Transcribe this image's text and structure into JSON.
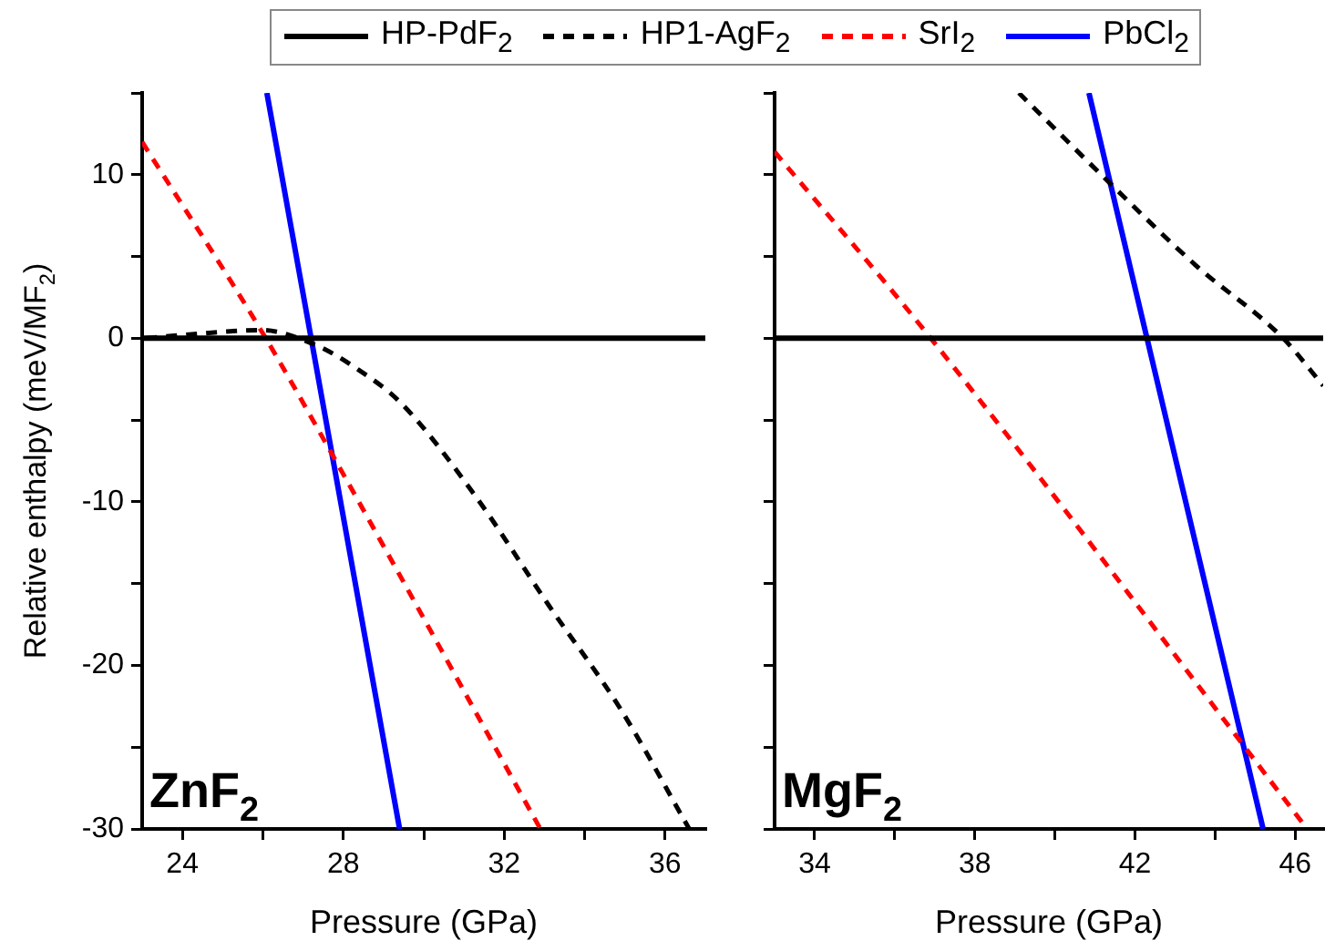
{
  "chart_data": [
    {
      "type": "line",
      "xlabel": "Pressure (GPa)",
      "ylabel": "Relative enthalpy (meV/MF$_{2}$)",
      "annotations": [
        "ZnF$_{2}$"
      ],
      "legend": "top",
      "grid": false,
      "xlim": [
        23,
        37
      ],
      "xticks": [
        24,
        {
          "value": 26,
          "label": null
        },
        28,
        {
          "value": 30,
          "label": null
        },
        32,
        {
          "value": 34,
          "label": null
        },
        36
      ],
      "ylim": [
        -30,
        15
      ],
      "yticks": [
        -30,
        {
          "value": -25,
          "label": null
        },
        -20,
        {
          "value": -15,
          "label": null
        },
        -10,
        {
          "value": -5,
          "label": null
        },
        0,
        {
          "value": 5,
          "label": null
        },
        10,
        {
          "value": 15,
          "label": null
        }
      ],
      "series": [
        {
          "name": "HP-PdF$_{2}$",
          "color": "#000000",
          "line_style": "solid",
          "x": [
            23,
            37
          ],
          "values": [
            0,
            0
          ]
        },
        {
          "name": "HP1-AgF$_{2}$",
          "color": "#000000",
          "line_style": "dashed",
          "x": [
            23.1,
            24.5,
            25.95,
            27.3,
            28.3,
            29.45,
            31.3,
            33.1,
            34.9,
            36.6
          ],
          "values": [
            0,
            0.3,
            0.5,
            -0.4,
            -1.8,
            -4,
            -9.7,
            -16.3,
            -22.7,
            -30
          ]
        },
        {
          "name": "SrI$_{2}$",
          "color": "#ff0000",
          "line_style": "dashed",
          "x": [
            23,
            26,
            27.7,
            32.9
          ],
          "values": [
            12,
            0.3,
            -7,
            -30
          ]
        },
        {
          "name": "PbCl$_{2}$",
          "color": "#0000ff",
          "line_style": "solid",
          "x": [
            26.1,
            27.2,
            29.4
          ],
          "values": [
            15,
            0,
            -30
          ]
        }
      ]
    },
    {
      "type": "line",
      "xlabel": "Pressure (GPa)",
      "annotations": [
        "MgF$_{2}$"
      ],
      "legend": false,
      "grid": false,
      "tick_labels": "x",
      "xlim": [
        33,
        46.7
      ],
      "xticks": [
        34,
        {
          "value": 36,
          "label": null
        },
        38,
        {
          "value": 40,
          "label": null
        },
        42,
        {
          "value": 44,
          "label": null
        },
        46
      ],
      "ylim": [
        -30,
        15
      ],
      "yticks": [
        -30,
        {
          "value": -25,
          "label": null
        },
        -20,
        {
          "value": -15,
          "label": null
        },
        -10,
        {
          "value": -5,
          "label": null
        },
        0,
        {
          "value": 5,
          "label": null
        },
        10,
        {
          "value": 15,
          "label": null
        }
      ],
      "series": [
        {
          "color": "#000000",
          "line_style": "solid",
          "x": [
            33,
            46.7
          ],
          "values": [
            0,
            0
          ]
        },
        {
          "color": "#000000",
          "line_style": "dashed",
          "x": [
            39.1,
            41.2,
            43.5,
            45.7,
            46.7
          ],
          "values": [
            15,
            9.9,
            4.5,
            0,
            -2.9
          ]
        },
        {
          "color": "#ff0000",
          "line_style": "dashed",
          "x": [
            33,
            36.9,
            46.3
          ],
          "values": [
            11.4,
            0,
            -30
          ]
        },
        {
          "color": "#0000ff",
          "line_style": "solid",
          "x": [
            40.85,
            42.3,
            45.2
          ],
          "values": [
            15,
            0,
            -30
          ]
        }
      ]
    }
  ]
}
